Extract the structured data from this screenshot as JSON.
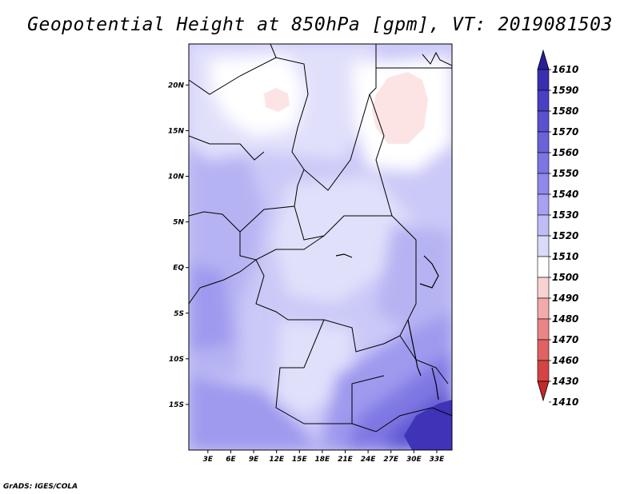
{
  "title": "Geopotential Height at 850hPa [gpm], VT: 2019081503",
  "credit": "GrADS: IGES/COLA",
  "map": {
    "lat_ticks": [
      "20N",
      "15N",
      "10N",
      "5N",
      "EQ",
      "5S",
      "10S",
      "15S"
    ],
    "lon_ticks": [
      "3E",
      "6E",
      "9E",
      "12E",
      "15E",
      "18E",
      "21E",
      "24E",
      "27E",
      "30E",
      "33E"
    ],
    "lat_range": [
      -20,
      24.5
    ],
    "lon_range": [
      0.5,
      35
    ],
    "field_colors": {
      "high_pink": "#fde4e4",
      "white": "#ffffff",
      "very_light": "#e1e0fb",
      "light": "#cbc9f7",
      "mid": "#b6b3f3",
      "mid_dark": "#9e9aee",
      "dark": "#7f78e3",
      "darker": "#5f56d2",
      "darkest": "#3f33b8"
    }
  },
  "colorbar": {
    "levels": [
      "1610",
      "1590",
      "1580",
      "1570",
      "1560",
      "1550",
      "1540",
      "1530",
      "1520",
      "1510",
      "1500",
      "1490",
      "1480",
      "1470",
      "1460",
      "1430",
      "1410"
    ],
    "colors": [
      "#2a1f9b",
      "#3a2fb0",
      "#4a40c2",
      "#5a51cf",
      "#6b62d9",
      "#7d75e2",
      "#9089ea",
      "#a6a1f1",
      "#c0bcf6",
      "#dcdafb",
      "#ffffff",
      "#fbd2d2",
      "#f3aaaa",
      "#ea8585",
      "#e06262",
      "#d54343",
      "#c52828"
    ]
  }
}
